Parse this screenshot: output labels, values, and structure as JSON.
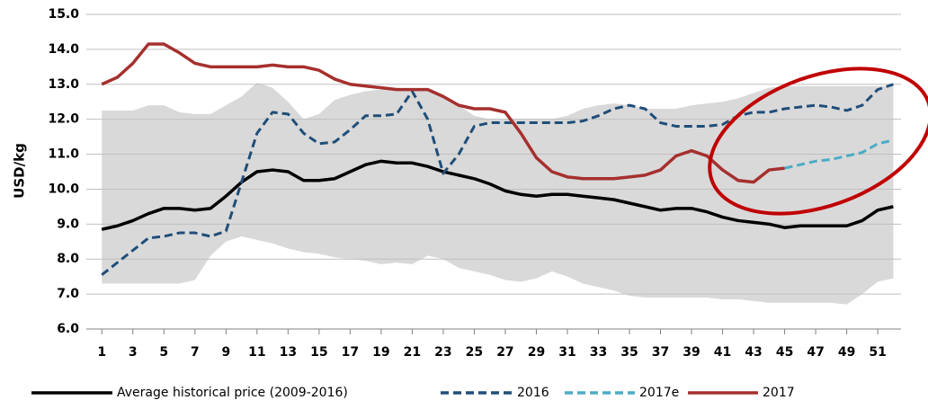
{
  "chart_data": {
    "type": "line",
    "y_label": "USD/kg",
    "x": [
      1,
      2,
      3,
      4,
      5,
      6,
      7,
      8,
      9,
      10,
      11,
      12,
      13,
      14,
      15,
      16,
      17,
      18,
      19,
      20,
      21,
      22,
      23,
      24,
      25,
      26,
      27,
      28,
      29,
      30,
      31,
      32,
      33,
      34,
      35,
      36,
      37,
      38,
      39,
      40,
      41,
      42,
      43,
      44,
      45,
      46,
      47,
      48,
      49,
      50,
      51,
      52
    ],
    "xlim": [
      0,
      52.5
    ],
    "xticks": [
      1,
      3,
      5,
      7,
      9,
      11,
      13,
      15,
      17,
      19,
      21,
      23,
      25,
      27,
      29,
      31,
      33,
      35,
      37,
      39,
      41,
      43,
      45,
      47,
      49,
      51
    ],
    "ylim": [
      6,
      15
    ],
    "yticks": [
      {
        "value": 6,
        "label": "6.0"
      },
      {
        "value": 7,
        "label": "7.0"
      },
      {
        "value": 8,
        "label": "8.0"
      },
      {
        "value": 9,
        "label": "9.0"
      },
      {
        "value": 10,
        "label": "10.0"
      },
      {
        "value": 11,
        "label": "11.0"
      },
      {
        "value": 12,
        "label": "12.0"
      },
      {
        "value": 13,
        "label": "13.0"
      },
      {
        "value": 14,
        "label": "14.0"
      },
      {
        "value": 15,
        "label": "15.0"
      }
    ],
    "grid": true,
    "legend": "bottom",
    "band": {
      "color": "#d9d9d9",
      "upper": [
        12.25,
        12.25,
        12.25,
        12.4,
        12.4,
        12.2,
        12.15,
        12.15,
        12.4,
        12.65,
        13.05,
        12.9,
        12.5,
        12.0,
        12.15,
        12.55,
        12.7,
        12.8,
        12.85,
        12.85,
        12.85,
        12.9,
        12.7,
        12.4,
        12.1,
        12.0,
        12.0,
        12.0,
        12.0,
        12.0,
        12.1,
        12.3,
        12.4,
        12.45,
        12.4,
        12.3,
        12.3,
        12.3,
        12.4,
        12.45,
        12.5,
        12.6,
        12.75,
        12.9,
        12.95,
        12.95,
        12.95,
        12.95,
        12.95,
        12.95,
        12.95,
        12.95
      ],
      "lower": [
        7.3,
        7.3,
        7.3,
        7.3,
        7.3,
        7.3,
        7.4,
        8.1,
        8.5,
        8.65,
        8.55,
        8.45,
        8.3,
        8.2,
        8.15,
        8.05,
        8.0,
        7.95,
        7.85,
        7.9,
        7.85,
        8.1,
        8.0,
        7.75,
        7.65,
        7.55,
        7.4,
        7.35,
        7.45,
        7.65,
        7.5,
        7.3,
        7.2,
        7.1,
        6.95,
        6.9,
        6.9,
        6.9,
        6.9,
        6.9,
        6.85,
        6.85,
        6.8,
        6.75,
        6.75,
        6.75,
        6.75,
        6.75,
        6.7,
        7.0,
        7.35,
        7.45
      ]
    },
    "series": [
      {
        "name": "Average historical price (2009-2016)",
        "color": "#000000",
        "style": "solid",
        "values": [
          8.85,
          8.95,
          9.1,
          9.3,
          9.45,
          9.45,
          9.4,
          9.45,
          9.8,
          10.2,
          10.5,
          10.55,
          10.5,
          10.25,
          10.25,
          10.3,
          10.5,
          10.7,
          10.8,
          10.75,
          10.75,
          10.65,
          10.5,
          10.4,
          10.3,
          10.15,
          9.95,
          9.85,
          9.8,
          9.85,
          9.85,
          9.8,
          9.75,
          9.7,
          9.6,
          9.5,
          9.4,
          9.45,
          9.45,
          9.35,
          9.2,
          9.1,
          9.05,
          9.0,
          8.9,
          8.95,
          8.95,
          8.95,
          8.95,
          9.1,
          9.4,
          9.5
        ]
      },
      {
        "name": "2016",
        "color": "#1f4e79",
        "style": "dashed",
        "values": [
          7.55,
          7.9,
          8.25,
          8.6,
          8.65,
          8.75,
          8.75,
          8.65,
          8.8,
          10.2,
          11.6,
          12.2,
          12.15,
          11.6,
          11.3,
          11.35,
          11.7,
          12.1,
          12.1,
          12.15,
          12.8,
          12.0,
          10.45,
          11.0,
          11.8,
          11.9,
          11.9,
          11.9,
          11.9,
          11.9,
          11.9,
          11.95,
          12.1,
          12.3,
          12.4,
          12.3,
          11.9,
          11.8,
          11.8,
          11.8,
          11.85,
          12.1,
          12.2,
          12.2,
          12.3,
          12.35,
          12.4,
          12.35,
          12.25,
          12.4,
          12.85,
          13.0
        ]
      },
      {
        "name": "2017e",
        "color": "#4bacc6",
        "style": "dashed",
        "values": [
          null,
          null,
          null,
          null,
          null,
          null,
          null,
          null,
          null,
          null,
          null,
          null,
          null,
          null,
          null,
          null,
          null,
          null,
          null,
          null,
          null,
          null,
          null,
          null,
          null,
          null,
          null,
          null,
          null,
          null,
          null,
          null,
          null,
          null,
          null,
          null,
          null,
          null,
          null,
          null,
          null,
          null,
          null,
          null,
          10.6,
          10.7,
          10.8,
          10.85,
          10.95,
          11.05,
          11.3,
          11.4
        ]
      },
      {
        "name": "2017",
        "color": "#a5302e",
        "style": "solid",
        "values": [
          13.0,
          13.2,
          13.6,
          14.15,
          14.15,
          13.9,
          13.6,
          13.5,
          13.5,
          13.5,
          13.5,
          13.55,
          13.5,
          13.5,
          13.4,
          13.15,
          13.0,
          12.95,
          12.9,
          12.85,
          12.85,
          12.85,
          12.65,
          12.4,
          12.3,
          12.3,
          12.2,
          11.6,
          10.9,
          10.5,
          10.35,
          10.3,
          10.3,
          10.3,
          10.35,
          10.4,
          10.55,
          10.95,
          11.1,
          10.95,
          10.55,
          10.25,
          10.2,
          10.55,
          10.6,
          null,
          null,
          null,
          null,
          null,
          null,
          null
        ]
      }
    ]
  }
}
